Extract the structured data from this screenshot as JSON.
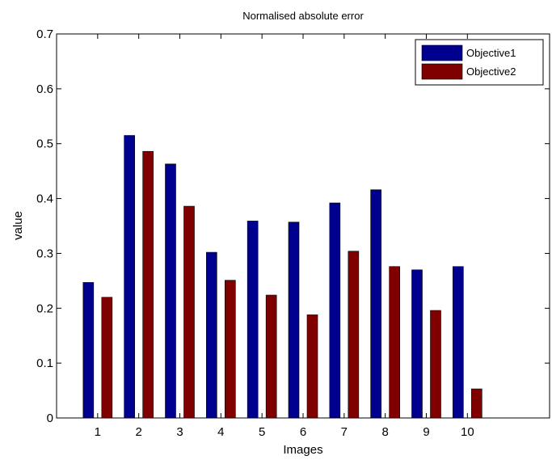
{
  "chart_data": {
    "type": "bar",
    "title": "Normalised absolute error",
    "xlabel": "Images",
    "ylabel": "value",
    "categories": [
      "1",
      "2",
      "3",
      "4",
      "5",
      "6",
      "7",
      "8",
      "9",
      "10"
    ],
    "series": [
      {
        "name": "Objective1",
        "color": "#00008f",
        "values": [
          0.247,
          0.515,
          0.463,
          0.302,
          0.359,
          0.357,
          0.392,
          0.416,
          0.27,
          0.276
        ]
      },
      {
        "name": "Objective2",
        "color": "#800000",
        "values": [
          0.22,
          0.486,
          0.386,
          0.251,
          0.224,
          0.188,
          0.304,
          0.276,
          0.196,
          0.053
        ]
      }
    ],
    "xlim": [
      0,
      12
    ],
    "ylim": [
      0,
      0.7
    ],
    "yticks": [
      0,
      0.1,
      0.2,
      0.3,
      0.4,
      0.5,
      0.6,
      0.7
    ],
    "ytick_labels": [
      "0",
      "0.1",
      "0.2",
      "0.3",
      "0.4",
      "0.5",
      "0.6",
      "0.7"
    ],
    "grid": false,
    "legend_position": "top-right"
  }
}
